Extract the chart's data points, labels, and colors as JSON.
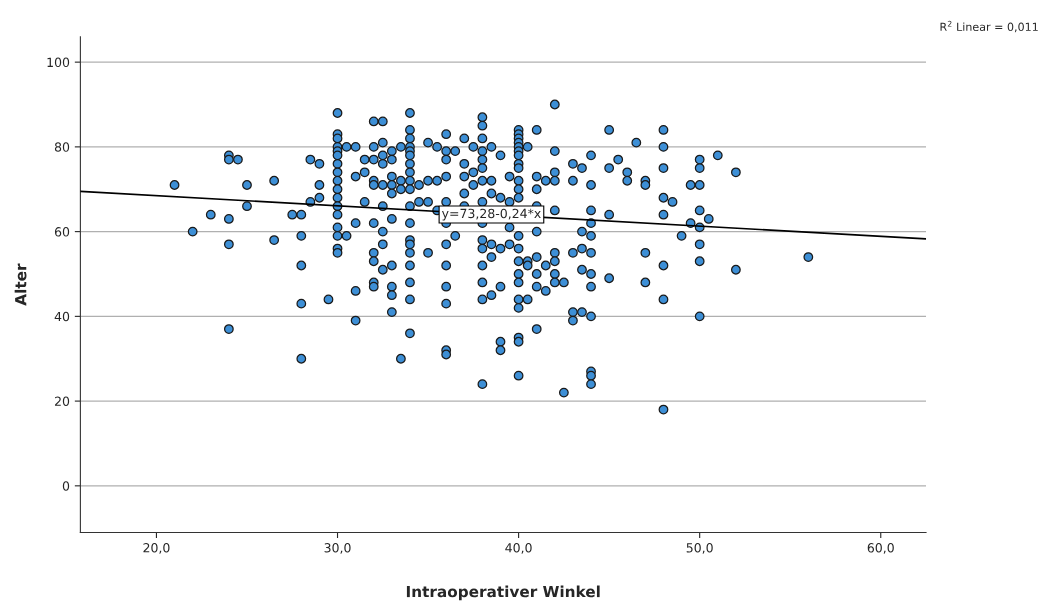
{
  "chart_data": {
    "type": "scatter",
    "xlabel": "Intraoperativer Winkel",
    "ylabel": "Alter",
    "xlim": [
      15.8,
      62.5
    ],
    "ylim": [
      -11,
      106
    ],
    "xticks": [
      {
        "value": 20,
        "label": "20,0"
      },
      {
        "value": 30,
        "label": "30,0"
      },
      {
        "value": 40,
        "label": "40,0"
      },
      {
        "value": 50,
        "label": "50,0"
      },
      {
        "value": 60,
        "label": "60,0"
      }
    ],
    "yticks": [
      0,
      20,
      40,
      60,
      80,
      100
    ],
    "grid": "y",
    "marker": "circle",
    "legend": false,
    "annotations": [
      "R$^{2}$ Linear = 0,011",
      {
        "text": "y=73,28-0,24*x",
        "x": 38.5,
        "y": 64.04
      }
    ],
    "series": [
      {
        "color": "#3d8fd6",
        "x": [
          21,
          22,
          23,
          24,
          24,
          24,
          24,
          24,
          24.5,
          25,
          25,
          26.5,
          26.5,
          27.5,
          28,
          28,
          28,
          28,
          28,
          28.5,
          28.5,
          29,
          29,
          29,
          29.5,
          30,
          30,
          30,
          30,
          30,
          30,
          30,
          30,
          30,
          30,
          30,
          30,
          30,
          30,
          30,
          30,
          30,
          30.5,
          30.5,
          31,
          31,
          31,
          31,
          31,
          31.5,
          31.5,
          31.5,
          32,
          32,
          32,
          32,
          32,
          32,
          32,
          32,
          32,
          32,
          32.5,
          32.5,
          32.5,
          32.5,
          32.5,
          32.5,
          32.5,
          32.5,
          32.5,
          33,
          33,
          33,
          33,
          33,
          33,
          33,
          33,
          33,
          33,
          33.5,
          33.5,
          33.5,
          33.5,
          34,
          34,
          34,
          34,
          34,
          34,
          34,
          34,
          34,
          34,
          34,
          34,
          34,
          34,
          34,
          34,
          34,
          34,
          34,
          34.5,
          34.5,
          35,
          35,
          35,
          35,
          35.5,
          35.5,
          35.5,
          36,
          36,
          36,
          36,
          36,
          36,
          36,
          36,
          36,
          36,
          36,
          36,
          36.5,
          36.5,
          37,
          37,
          37,
          37,
          37,
          37.5,
          37.5,
          37.5,
          38,
          38,
          38,
          38,
          38,
          38,
          38,
          38,
          38,
          38,
          38,
          38,
          38,
          38,
          38,
          38.5,
          38.5,
          38.5,
          38.5,
          38.5,
          38.5,
          39,
          39,
          39,
          39,
          39,
          39,
          39.5,
          39.5,
          39.5,
          39.5,
          40,
          40,
          40,
          40,
          40,
          40,
          40,
          40,
          40,
          40,
          40,
          40,
          40,
          40,
          40,
          40,
          40,
          40,
          40,
          40,
          40,
          40,
          40.5,
          40.5,
          40.5,
          40.5,
          41,
          41,
          41,
          41,
          41,
          41,
          41,
          41,
          41,
          41.5,
          41.5,
          41.5,
          42,
          42,
          42,
          42,
          42,
          42,
          42,
          42,
          42,
          42.5,
          42.5,
          43,
          43,
          43,
          43,
          43,
          43.5,
          43.5,
          43.5,
          43.5,
          43.5,
          44,
          44,
          44,
          44,
          44,
          44,
          44,
          44,
          44,
          44,
          44,
          44,
          45,
          45,
          45,
          45,
          45.5,
          46,
          46,
          46.5,
          47,
          47,
          47,
          47,
          48,
          48,
          48,
          48,
          48,
          48,
          48,
          48,
          48.5,
          49,
          49.5,
          49.5,
          50,
          50,
          50,
          50,
          50,
          50,
          50,
          50,
          50.5,
          51,
          52,
          52,
          56
        ],
        "values": [
          71,
          60,
          64,
          78,
          77,
          63,
          57,
          37,
          77,
          71,
          66,
          72,
          58,
          64,
          64,
          59,
          52,
          43,
          30,
          77,
          67,
          76,
          71,
          68,
          44,
          88,
          83,
          82,
          80,
          79,
          78,
          76,
          74,
          72,
          70,
          68,
          66,
          64,
          61,
          59,
          56,
          55,
          80,
          59,
          80,
          73,
          62,
          46,
          39,
          77,
          74,
          67,
          86,
          80,
          77,
          72,
          71,
          62,
          55,
          53,
          48,
          47,
          86,
          81,
          78,
          76,
          71,
          66,
          60,
          57,
          51,
          79,
          77,
          73,
          71,
          69,
          63,
          52,
          47,
          45,
          41,
          80,
          72,
          70,
          30,
          88,
          84,
          82,
          80,
          79,
          78,
          76,
          74,
          72,
          70,
          66,
          62,
          58,
          57,
          55,
          52,
          48,
          44,
          36,
          71,
          67,
          81,
          72,
          67,
          55,
          80,
          72,
          65,
          83,
          79,
          77,
          73,
          67,
          62,
          57,
          52,
          47,
          43,
          32,
          31,
          79,
          59,
          82,
          76,
          73,
          69,
          66,
          80,
          74,
          71,
          87,
          85,
          82,
          79,
          77,
          75,
          72,
          67,
          62,
          58,
          56,
          52,
          48,
          44,
          24,
          80,
          72,
          69,
          57,
          54,
          45,
          78,
          68,
          56,
          47,
          34,
          32,
          73,
          67,
          61,
          57,
          84,
          83,
          82,
          81,
          80,
          79,
          78,
          76,
          75,
          72,
          70,
          68,
          59,
          56,
          53,
          50,
          48,
          44,
          42,
          35,
          34,
          26,
          80,
          53,
          52,
          44,
          84,
          73,
          70,
          66,
          60,
          54,
          50,
          47,
          37,
          72,
          52,
          46,
          90,
          79,
          74,
          72,
          65,
          55,
          53,
          50,
          48,
          48,
          22,
          76,
          72,
          55,
          41,
          39,
          75,
          60,
          56,
          51,
          41,
          78,
          71,
          65,
          62,
          59,
          55,
          50,
          47,
          40,
          27,
          26,
          24,
          84,
          75,
          64,
          49,
          77,
          74,
          72,
          81,
          72,
          71,
          55,
          48,
          84,
          80,
          75,
          68,
          64,
          52,
          44,
          18,
          67,
          59,
          71,
          62,
          77,
          75,
          71,
          65,
          61,
          57,
          53,
          40,
          63,
          78,
          74,
          51,
          54
        ]
      },
      {
        "type": "line",
        "marker": "none",
        "color": "#000000",
        "x": [
          15.8,
          62.5
        ],
        "values": [
          69.5,
          58.3
        ]
      }
    ]
  }
}
